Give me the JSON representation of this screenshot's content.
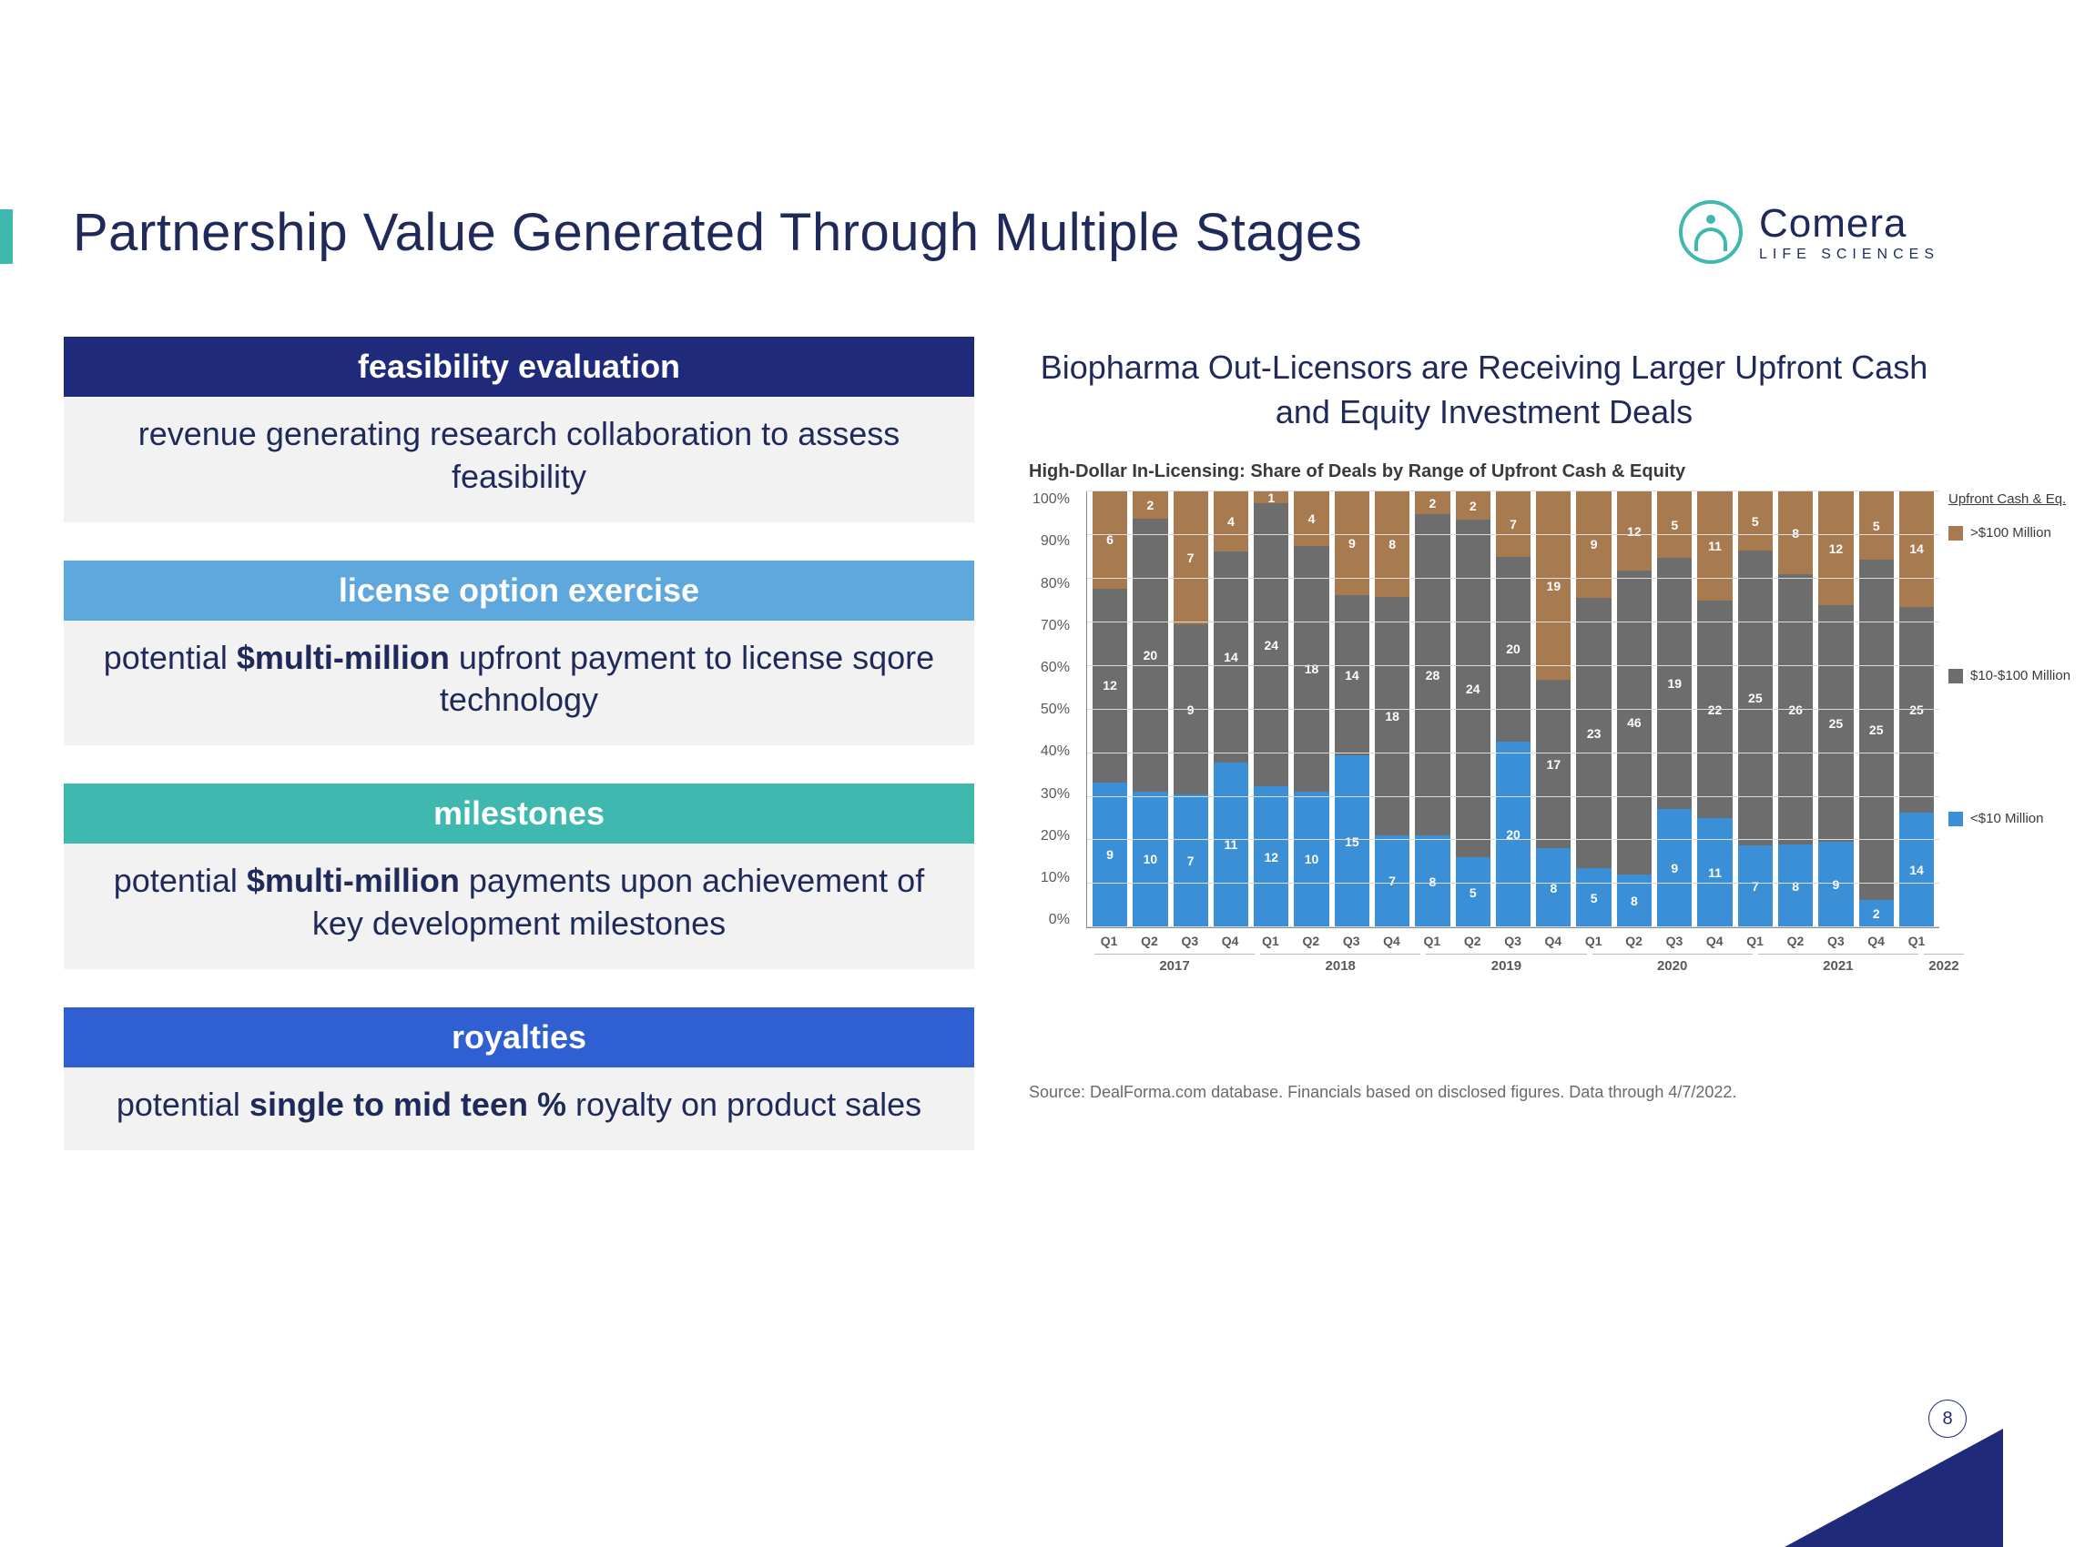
{
  "title": "Partnership Value Generated Through Multiple Stages",
  "logo": {
    "name": "Comera",
    "sub": "LIFE SCIENCES"
  },
  "stages": [
    {
      "header": "feasibility evaluation",
      "header_color": "#1f2a7a",
      "body_pre": "revenue generating research collaboration to ",
      "body_strong": "",
      "body_post": "assess feasibility"
    },
    {
      "header": "license option exercise",
      "header_color": "#5ea8dd",
      "body_pre": "potential ",
      "body_strong": "$multi-million",
      "body_post": " upfront payment to license sqore technology"
    },
    {
      "header": "milestones",
      "header_color": "#3fb8af",
      "body_pre": "potential ",
      "body_strong": "$multi-million",
      "body_post": " payments upon achievement of key development milestones"
    },
    {
      "header": "royalties",
      "header_color": "#2f5fd0",
      "body_pre": "potential ",
      "body_strong": "single to mid teen %",
      "body_post": " royalty on product sales"
    }
  ],
  "right": {
    "title": "Biopharma Out-Licensors are Receiving Larger Upfront Cash and Equity Investment Deals",
    "chart_title": "High-Dollar In-Licensing: Share of Deals by Range of Upfront Cash & Equity",
    "source": "Source: DealForma.com database. Financials based on disclosed figures. Data through 4/7/2022."
  },
  "chart": {
    "type": "stacked-bar-100",
    "y_ticks": [
      "100%",
      "90%",
      "80%",
      "70%",
      "60%",
      "50%",
      "40%",
      "30%",
      "20%",
      "10%",
      "0%"
    ],
    "grid_color": "#dcdcdc",
    "background_color": "#ffffff",
    "colors": {
      "low": "#3b8fd6",
      "mid": "#6d6d6d",
      "high": "#a77b4f"
    },
    "legend_title": "Upfront Cash & Eq.",
    "legend": [
      {
        "label": ">$100 Million",
        "color": "#a77b4f"
      },
      {
        "label": "$10-$100 Million",
        "color": "#6d6d6d"
      },
      {
        "label": "<$10 Million",
        "color": "#3b8fd6"
      }
    ],
    "x_quarters": [
      "Q1",
      "Q2",
      "Q3",
      "Q4",
      "Q1",
      "Q2",
      "Q3",
      "Q4",
      "Q1",
      "Q2",
      "Q3",
      "Q4",
      "Q1",
      "Q2",
      "Q3",
      "Q4",
      "Q1",
      "Q2",
      "Q3",
      "Q4",
      "Q1"
    ],
    "years": [
      {
        "label": "2017",
        "span": 4
      },
      {
        "label": "2018",
        "span": 4
      },
      {
        "label": "2019",
        "span": 4
      },
      {
        "label": "2020",
        "span": 4
      },
      {
        "label": "2021",
        "span": 4
      },
      {
        "label": "2022",
        "span": 1
      }
    ],
    "series_labels": {
      "low": true,
      "mid": true,
      "high": true
    },
    "bars": [
      {
        "low": 9,
        "mid": 12,
        "high": 6
      },
      {
        "low": 10,
        "mid": 20,
        "high": 2
      },
      {
        "low": 7,
        "mid": 9,
        "high": 7
      },
      {
        "low": 11,
        "mid": 14,
        "high": 4
      },
      {
        "low": 12,
        "mid": 24,
        "high": 1
      },
      {
        "low": 10,
        "mid": 18,
        "high": 4
      },
      {
        "low": 15,
        "mid": 14,
        "high": 9
      },
      {
        "low": 7,
        "mid": 18,
        "high": 8
      },
      {
        "low": 8,
        "mid": 28,
        "high": 2
      },
      {
        "low": 5,
        "mid": 24,
        "high": 2
      },
      {
        "low": 20,
        "mid": 20,
        "high": 7
      },
      {
        "low": 8,
        "mid": 17,
        "high": 19
      },
      {
        "low": 5,
        "mid": 23,
        "high": 9
      },
      {
        "low": 8,
        "mid": 46,
        "high": 12
      },
      {
        "low": 9,
        "mid": 19,
        "high": 5
      },
      {
        "low": 11,
        "mid": 22,
        "high": 11
      },
      {
        "low": 7,
        "mid": 25,
        "high": 5
      },
      {
        "low": 8,
        "mid": 26,
        "high": 8
      },
      {
        "low": 9,
        "mid": 25,
        "high": 12
      },
      {
        "low": 2,
        "mid": 25,
        "high": 5
      },
      {
        "low": 14,
        "mid": 25,
        "high": 14
      }
    ]
  },
  "page_number": "8"
}
